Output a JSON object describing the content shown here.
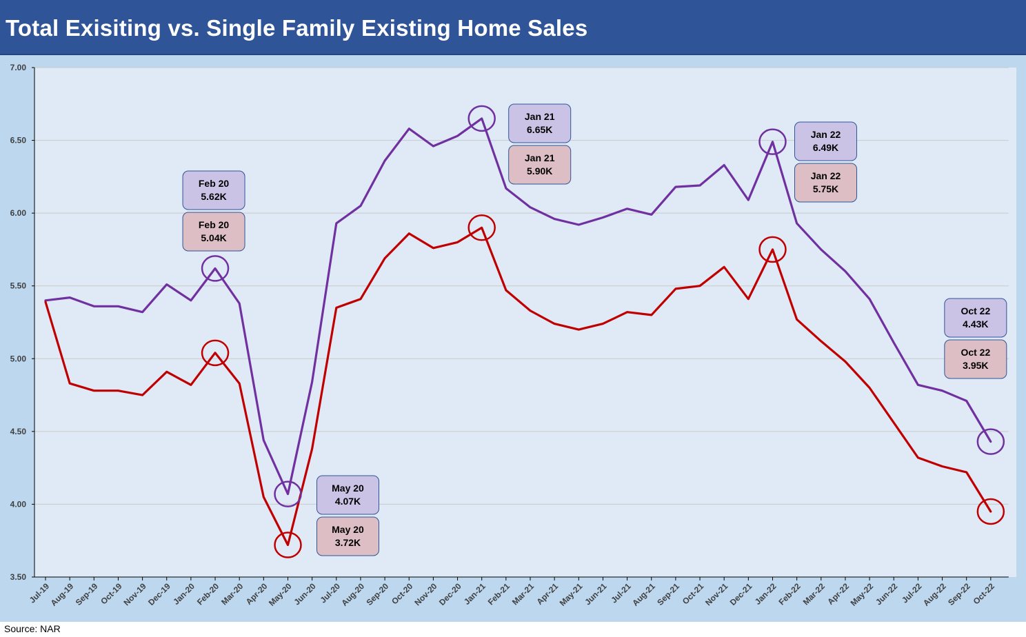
{
  "title": "Total Exisiting vs. Single Family Existing Home Sales",
  "source": "Source: NAR",
  "colors": {
    "title_bg": "#2f5497",
    "outer_bg": "#bdd7ee",
    "plot_bg": "#dfeaf6",
    "total_line": "#7030a0",
    "single_family_line": "#c00000",
    "total_label_bg": "#cbc3e6",
    "single_family_label_bg": "#dcbec4",
    "label_border": "#2f5497"
  },
  "chart_data": {
    "type": "line",
    "ylim": [
      3.5,
      7.0
    ],
    "y_ticks": [
      "3.50",
      "4.00",
      "4.50",
      "5.00",
      "5.50",
      "6.00",
      "6.50",
      "7.00"
    ],
    "grid": true,
    "categories": [
      "Jul-19",
      "Aug-19",
      "Sep-19",
      "Oct-19",
      "Nov-19",
      "Dec-19",
      "Jan-20",
      "Feb-20",
      "Mar-20",
      "Apr-20",
      "May-20",
      "Jun-20",
      "Jul-20",
      "Aug-20",
      "Sep-20",
      "Oct-20",
      "Nov-20",
      "Dec-20",
      "Jan-21",
      "Feb-21",
      "Mar-21",
      "Apr-21",
      "May-21",
      "Jun-21",
      "Jul-21",
      "Aug-21",
      "Sep-21",
      "Oct-21",
      "Nov-21",
      "Dec-21",
      "Jan-22",
      "Feb-22",
      "Mar-22",
      "Apr-22",
      "May-22",
      "Jun-22",
      "Jul-22",
      "Aug-22",
      "Sep-22",
      "Oct-22"
    ],
    "series": [
      {
        "key": "total",
        "values": [
          5.4,
          5.42,
          5.36,
          5.36,
          5.32,
          5.51,
          5.4,
          5.62,
          5.38,
          4.44,
          4.07,
          4.84,
          5.93,
          6.05,
          6.36,
          6.58,
          6.46,
          6.53,
          6.65,
          6.17,
          6.04,
          5.96,
          5.92,
          5.97,
          6.03,
          5.99,
          6.18,
          6.19,
          6.33,
          6.09,
          6.49,
          5.93,
          5.75,
          5.6,
          5.41,
          5.11,
          4.82,
          4.78,
          4.71,
          4.43
        ]
      },
      {
        "key": "single_family",
        "values": [
          5.39,
          4.83,
          4.78,
          4.78,
          4.75,
          4.91,
          4.82,
          5.04,
          4.83,
          4.05,
          3.72,
          4.38,
          5.35,
          5.41,
          5.69,
          5.86,
          5.76,
          5.8,
          5.9,
          5.47,
          5.33,
          5.24,
          5.2,
          5.24,
          5.32,
          5.3,
          5.48,
          5.5,
          5.63,
          5.41,
          5.75,
          5.27,
          5.12,
          4.98,
          4.8,
          4.56,
          4.32,
          4.26,
          4.22,
          3.95
        ]
      }
    ],
    "annotations": [
      {
        "index": 7,
        "total_label": [
          "Feb 20",
          "5.62K"
        ],
        "sf_label": [
          "Feb 20",
          "5.04K"
        ]
      },
      {
        "index": 10,
        "total_label": [
          "May 20",
          "4.07K"
        ],
        "sf_label": [
          "May 20",
          "3.72K"
        ]
      },
      {
        "index": 18,
        "total_label": [
          "Jan 21",
          "6.65K"
        ],
        "sf_label": [
          "Jan 21",
          "5.90K"
        ]
      },
      {
        "index": 30,
        "total_label": [
          "Jan 22",
          "6.49K"
        ],
        "sf_label": [
          "Jan 22",
          "5.75K"
        ]
      },
      {
        "index": 39,
        "total_label": [
          "Oct 22",
          "4.43K"
        ],
        "sf_label": [
          "Oct 22",
          "3.95K"
        ]
      }
    ]
  }
}
